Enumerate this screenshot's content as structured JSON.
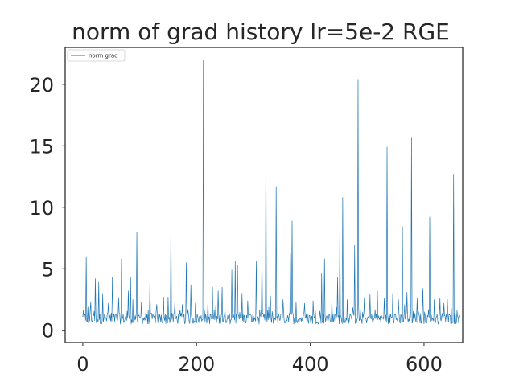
{
  "chart_data": {
    "type": "line",
    "title": "norm of grad history lr=5e-2 RGE",
    "xlabel": "",
    "ylabel": "",
    "xlim": [
      -31,
      668
    ],
    "ylim": [
      -1,
      23
    ],
    "xticks": [
      0,
      200,
      400,
      600
    ],
    "yticks": [
      0,
      5,
      10,
      15,
      20
    ],
    "grid": false,
    "legend_position": "top-left",
    "series": [
      {
        "name": "norm grad",
        "color": "#1f77b4",
        "x_start": 0,
        "x_end": 663,
        "spikes": [
          [
            6,
            6.0
          ],
          [
            14,
            2.3
          ],
          [
            22,
            4.2
          ],
          [
            28,
            3.9
          ],
          [
            35,
            3.0
          ],
          [
            45,
            2.2
          ],
          [
            52,
            4.3
          ],
          [
            63,
            2.6
          ],
          [
            68,
            5.8
          ],
          [
            80,
            3.2
          ],
          [
            84,
            4.3
          ],
          [
            88,
            2.5
          ],
          [
            95,
            8.0
          ],
          [
            103,
            2.3
          ],
          [
            118,
            3.8
          ],
          [
            130,
            2.1
          ],
          [
            142,
            2.7
          ],
          [
            150,
            2.7
          ],
          [
            155,
            9.0
          ],
          [
            162,
            2.4
          ],
          [
            175,
            2.1
          ],
          [
            182,
            5.5
          ],
          [
            190,
            3.7
          ],
          [
            198,
            2.2
          ],
          [
            212,
            22.0
          ],
          [
            220,
            2.3
          ],
          [
            228,
            3.5
          ],
          [
            238,
            3.2
          ],
          [
            245,
            3.5
          ],
          [
            262,
            4.9
          ],
          [
            268,
            5.6
          ],
          [
            272,
            5.3
          ],
          [
            280,
            3.0
          ],
          [
            290,
            2.4
          ],
          [
            305,
            5.6
          ],
          [
            315,
            6.0
          ],
          [
            322,
            15.2
          ],
          [
            330,
            2.8
          ],
          [
            340,
            11.7
          ],
          [
            352,
            2.5
          ],
          [
            365,
            6.2
          ],
          [
            368,
            8.9
          ],
          [
            375,
            2.3
          ],
          [
            390,
            2.2
          ],
          [
            405,
            2.4
          ],
          [
            420,
            4.6
          ],
          [
            425,
            5.8
          ],
          [
            438,
            2.6
          ],
          [
            448,
            4.3
          ],
          [
            452,
            8.3
          ],
          [
            457,
            10.8
          ],
          [
            465,
            2.5
          ],
          [
            478,
            6.9
          ],
          [
            484,
            20.4
          ],
          [
            495,
            2.6
          ],
          [
            505,
            2.9
          ],
          [
            518,
            3.2
          ],
          [
            530,
            2.6
          ],
          [
            535,
            14.9
          ],
          [
            545,
            3.0
          ],
          [
            555,
            2.5
          ],
          [
            562,
            8.4
          ],
          [
            570,
            3.1
          ],
          [
            578,
            15.7
          ],
          [
            588,
            2.6
          ],
          [
            598,
            3.4
          ],
          [
            610,
            9.2
          ],
          [
            618,
            2.5
          ],
          [
            628,
            2.6
          ],
          [
            635,
            2.2
          ],
          [
            641,
            2.5
          ],
          [
            648,
            1.8
          ],
          [
            652,
            12.7
          ],
          [
            658,
            1.6
          ]
        ]
      }
    ]
  }
}
